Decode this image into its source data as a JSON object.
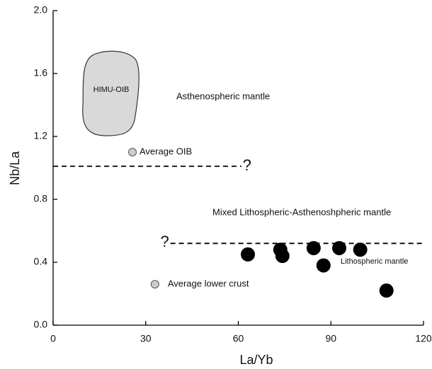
{
  "chart_data": {
    "type": "scatter",
    "xlabel": "La/Yb",
    "ylabel": "Nb/La",
    "xlim": [
      0,
      120
    ],
    "ylim": [
      0,
      2
    ],
    "xticks": [
      0,
      30,
      60,
      90,
      120
    ],
    "yticks": [
      {
        "value": 0,
        "label": "0.0"
      },
      0.4,
      0.8,
      1.2,
      1.6,
      {
        "value": 2,
        "label": "2.0"
      }
    ],
    "series": [
      {
        "color": "#000000",
        "x": [
          63.1,
          73.6,
          74.3,
          84.4,
          87.6,
          92.7,
          99.5,
          108
        ],
        "values": [
          0.45,
          0.48,
          0.44,
          0.49,
          0.38,
          0.49,
          0.48,
          0.22
        ]
      },
      {
        "name": "Average OIB",
        "color": "#cccccc",
        "x": [
          25.7
        ],
        "values": [
          1.1
        ]
      },
      {
        "name": "Average lower crust",
        "color": "#cccccc",
        "x": [
          33
        ],
        "values": [
          0.26
        ]
      }
    ],
    "reference_lines": [
      {
        "y": 1.01,
        "x": [
          0,
          61
        ],
        "label": "?"
      },
      {
        "y": 0.52,
        "x": [
          38,
          120
        ],
        "label": "?"
      }
    ],
    "annotations": [
      "HIMU-OIB",
      "Asthenospheric mantle",
      "Mixed Lithospheric-Asthenoshpheric mantle",
      "Lithospheric mantle"
    ]
  }
}
